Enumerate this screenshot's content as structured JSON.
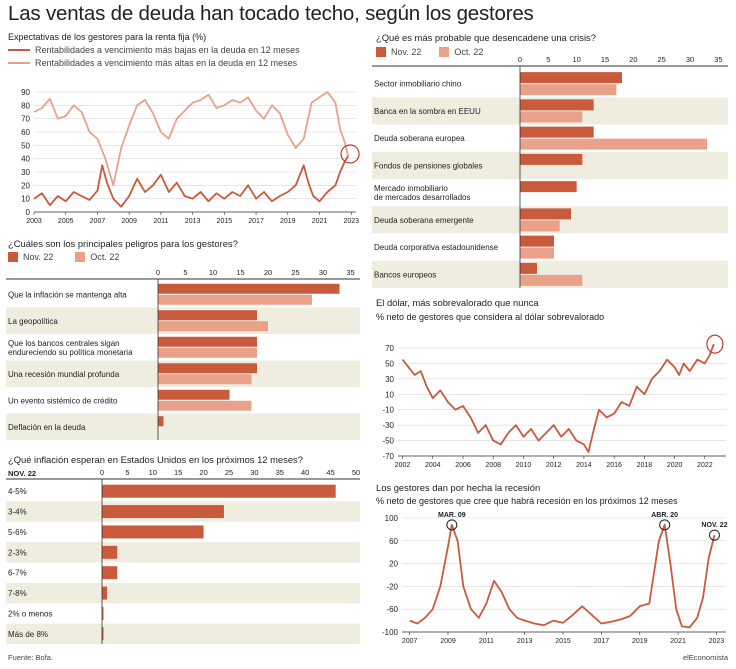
{
  "page": {
    "title": "Las ventas de deuda han tocado techo, según los gestores",
    "source": "Fuente: Bofa.",
    "brand": "elEconomista"
  },
  "colors": {
    "dark": "#c95a3c",
    "light": "#e9a189",
    "band": "#efede0",
    "axis": "#555555"
  },
  "chart_data": [
    {
      "id": "expectativas",
      "type": "line",
      "title": "Expectativas de los gestores para la renta fija (%)",
      "series": [
        {
          "name": "Rentabilidades a vencimiento más bajas en la deuda en 12 meses",
          "color": "#c95a3c",
          "x": [
            2003,
            2003.5,
            2004,
            2004.5,
            2005,
            2005.5,
            2006,
            2006.5,
            2007,
            2007.3,
            2007.6,
            2008,
            2008.5,
            2009,
            2009.5,
            2010,
            2010.5,
            2011,
            2011.5,
            2012,
            2012.5,
            2013,
            2013.5,
            2014,
            2014.5,
            2015,
            2015.5,
            2016,
            2016.5,
            2017,
            2017.5,
            2018,
            2018.5,
            2019,
            2019.5,
            2020,
            2020.3,
            2020.6,
            2021,
            2021.5,
            2022,
            2022.3,
            2022.6,
            2022.8
          ],
          "y": [
            10,
            14,
            5,
            12,
            8,
            15,
            12,
            9,
            16,
            35,
            22,
            10,
            4,
            12,
            25,
            15,
            20,
            28,
            15,
            22,
            12,
            10,
            15,
            8,
            14,
            10,
            15,
            12,
            20,
            10,
            15,
            8,
            12,
            15,
            20,
            35,
            22,
            12,
            8,
            15,
            20,
            30,
            38,
            42
          ]
        },
        {
          "name": "Rentabilidades a vencimiento más altas en la deuda en 12 meses",
          "color": "#e9a189",
          "x": [
            2003,
            2003.5,
            2004,
            2004.5,
            2005,
            2005.5,
            2006,
            2006.5,
            2007,
            2007.5,
            2008,
            2008.5,
            2009,
            2009.5,
            2010,
            2010.5,
            2011,
            2011.5,
            2012,
            2012.5,
            2013,
            2013.5,
            2014,
            2014.5,
            2015,
            2015.5,
            2016,
            2016.5,
            2017,
            2017.5,
            2018,
            2018.5,
            2019,
            2019.5,
            2020,
            2020.5,
            2021,
            2021.5,
            2022,
            2022.3,
            2022.6,
            2022.8
          ],
          "y": [
            75,
            78,
            85,
            70,
            72,
            80,
            75,
            60,
            55,
            40,
            20,
            48,
            65,
            80,
            84,
            74,
            60,
            55,
            70,
            76,
            82,
            84,
            88,
            78,
            80,
            84,
            82,
            86,
            76,
            70,
            80,
            74,
            58,
            48,
            55,
            82,
            86,
            90,
            82,
            62,
            52,
            42
          ]
        }
      ],
      "xticks": [
        "2003",
        "2005",
        "2007",
        "2009",
        "2011",
        "2013",
        "2015",
        "2017",
        "2019",
        "2021",
        "2023"
      ],
      "xlim": [
        2003,
        2023.3
      ],
      "ylim": [
        0,
        90
      ],
      "yticks": [
        0,
        10,
        20,
        30,
        40,
        50,
        60,
        70,
        80,
        90
      ]
    },
    {
      "id": "peligros",
      "type": "bar",
      "title": "¿Cuáles son los principales peligros para los gestores?",
      "categories": [
        "Que la inflación se mantenga alta",
        "La geopolítica",
        "Que los bancos centrales sigan endureciendo su política monetaria",
        "Una recesión mundial profunda",
        "Un evento sistémico de crédito",
        "Deflación en la deuda"
      ],
      "series": [
        {
          "name": "Nov. 22",
          "color": "#c95a3c",
          "values": [
            33,
            18,
            18,
            18,
            13,
            1
          ]
        },
        {
          "name": "Oct. 22",
          "color": "#e9a189",
          "values": [
            28,
            20,
            18,
            17,
            17,
            0
          ]
        }
      ],
      "xlim": [
        0,
        36
      ],
      "xticks": [
        0,
        5,
        10,
        15,
        20,
        25,
        30,
        35
      ]
    },
    {
      "id": "inflacion",
      "type": "bar",
      "title": "¿Qué inflación esperan en Estados Unidos en los próximos 12 meses?",
      "header": "NOV. 22",
      "categories": [
        "4-5%",
        "3-4%",
        "5-6%",
        "2-3%",
        "6-7%",
        "7-8%",
        "2% o menos",
        "Más de 8%"
      ],
      "series": [
        {
          "name": "Nov. 22",
          "color": "#c95a3c",
          "values": [
            46,
            24,
            20,
            3,
            3,
            1,
            0.2,
            0.2
          ]
        }
      ],
      "xlim": [
        0,
        50
      ],
      "xticks": [
        0,
        5,
        10,
        15,
        20,
        25,
        30,
        35,
        40,
        45,
        50
      ]
    },
    {
      "id": "crisis",
      "type": "bar",
      "title": "¿Qué es más probable que desencadene una crisis?",
      "categories": [
        "Sector inmobiliario chino",
        "Banca en la sombra en EEUU",
        "Deuda soberana europea",
        "Fondos de pensiones globales",
        "Mercado inmobiliario de mercados desarrollados",
        "Deuda soberana emergente",
        "Deuda corporativa estadounidense",
        "Bancos europeos"
      ],
      "series": [
        {
          "name": "Nov. 22",
          "color": "#c95a3c",
          "values": [
            18,
            13,
            13,
            11,
            10,
            9,
            6,
            3
          ]
        },
        {
          "name": "Oct. 22",
          "color": "#e9a189",
          "values": [
            17,
            11,
            33,
            0,
            0,
            7,
            6,
            11
          ]
        }
      ],
      "xlim": [
        0,
        36
      ],
      "xticks": [
        0,
        5,
        10,
        15,
        20,
        25,
        30,
        35
      ]
    },
    {
      "id": "dolar",
      "type": "line",
      "title": "El dólar, más sobrevalorado que nunca",
      "subtitle": "% neto de gestores que considera al dólar sobrevalorado",
      "series": [
        {
          "name": "",
          "color": "#c95a3c",
          "x": [
            2002,
            2002.4,
            2002.8,
            2003.2,
            2003.6,
            2004,
            2004.5,
            2005,
            2005.5,
            2006,
            2006.5,
            2007,
            2007.5,
            2008,
            2008.5,
            2009,
            2009.5,
            2010,
            2010.5,
            2011,
            2011.5,
            2012,
            2012.5,
            2013,
            2013.5,
            2014,
            2014.3,
            2014.6,
            2015,
            2015.5,
            2016,
            2016.5,
            2017,
            2017.5,
            2018,
            2018.5,
            2019,
            2019.5,
            2020,
            2020.3,
            2020.6,
            2021,
            2021.5,
            2022,
            2022.3,
            2022.6
          ],
          "y": [
            55,
            45,
            35,
            40,
            20,
            5,
            15,
            0,
            -10,
            -5,
            -20,
            -40,
            -30,
            -50,
            -55,
            -40,
            -30,
            -45,
            -35,
            -50,
            -40,
            -30,
            -45,
            -35,
            -50,
            -55,
            -65,
            -40,
            -10,
            -20,
            -15,
            0,
            -5,
            20,
            10,
            30,
            40,
            55,
            45,
            35,
            50,
            40,
            55,
            50,
            60,
            75
          ]
        }
      ],
      "xticks": [
        "2002",
        "2004",
        "2006",
        "2008",
        "2010",
        "2012",
        "2014",
        "2016",
        "2018",
        "2020",
        "2022"
      ],
      "xlim": [
        2001.7,
        2023.4
      ],
      "ylim": [
        -70,
        70
      ],
      "yticks": [
        70,
        50,
        30,
        10,
        -10,
        -30,
        -50,
        -70
      ]
    },
    {
      "id": "recesion",
      "type": "line",
      "title": "Los gestores dan por hecha la recesión",
      "subtitle": "% neto de gestores que cree que habrá recesión en los próximos 12 meses",
      "annotations": [
        "MAR. 09",
        "ABR. 20",
        "NOV. 22"
      ],
      "series": [
        {
          "name": "",
          "color": "#c95a3c",
          "x": [
            2007,
            2007.4,
            2007.8,
            2008.2,
            2008.6,
            2009,
            2009.2,
            2009.5,
            2009.8,
            2010.2,
            2010.6,
            2011,
            2011.4,
            2011.8,
            2012.2,
            2012.6,
            2013,
            2013.5,
            2014,
            2014.5,
            2015,
            2015.5,
            2016,
            2016.5,
            2017,
            2017.5,
            2018,
            2018.5,
            2019,
            2019.5,
            2020,
            2020.3,
            2020.6,
            2020.9,
            2021.2,
            2021.6,
            2022,
            2022.3,
            2022.6,
            2022.9
          ],
          "y": [
            -80,
            -85,
            -75,
            -60,
            -20,
            50,
            88,
            60,
            -20,
            -60,
            -75,
            -50,
            -10,
            -30,
            -60,
            -75,
            -80,
            -85,
            -88,
            -80,
            -84,
            -70,
            -55,
            -70,
            -85,
            -82,
            -78,
            -72,
            -55,
            -50,
            60,
            88,
            20,
            -60,
            -90,
            -92,
            -75,
            -40,
            30,
            70
          ]
        }
      ],
      "xticks": [
        "2007",
        "2009",
        "2011",
        "2013",
        "2015",
        "2017",
        "2019",
        "2021",
        "2023"
      ],
      "xlim": [
        2006.6,
        2023.5
      ],
      "ylim": [
        -100,
        100
      ],
      "yticks": [
        100,
        60,
        20,
        -20,
        -60,
        -100
      ]
    }
  ]
}
